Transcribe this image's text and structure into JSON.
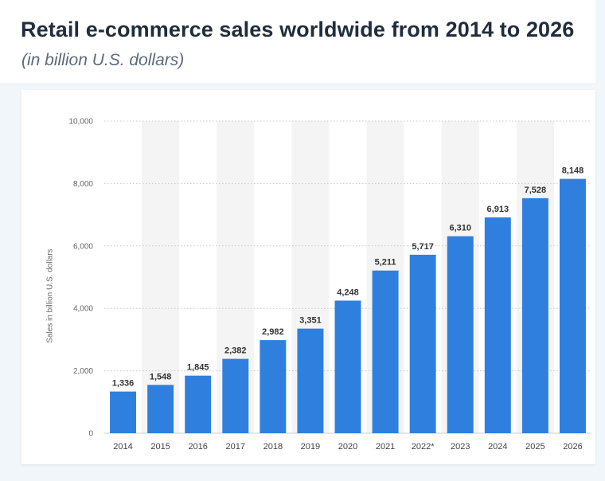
{
  "header": {
    "title": "Retail e-commerce sales worldwide from 2014 to 2026",
    "subtitle": "(in billion U.S. dollars)"
  },
  "chart_data": {
    "type": "bar",
    "title": "Retail e-commerce sales worldwide from 2014 to 2026",
    "subtitle": "(in billion U.S. dollars)",
    "xlabel": "",
    "ylabel": "Sales in billion U.S. dollars",
    "ylim": [
      0,
      10000
    ],
    "yticks": [
      0,
      2000,
      4000,
      6000,
      8000,
      10000
    ],
    "ytick_labels": [
      "0",
      "2,000",
      "4,000",
      "6,000",
      "8,000",
      "10,000"
    ],
    "grid": true,
    "categories": [
      "2014",
      "2015",
      "2016",
      "2017",
      "2018",
      "2019",
      "2020",
      "2021",
      "2022*",
      "2023",
      "2024",
      "2025",
      "2026"
    ],
    "values": [
      1336,
      1548,
      1845,
      2382,
      2982,
      3351,
      4248,
      5211,
      5717,
      6310,
      6913,
      7528,
      8148
    ],
    "value_labels": [
      "1,336",
      "1,548",
      "1,845",
      "2,382",
      "2,982",
      "3,351",
      "4,248",
      "5,211",
      "5,717",
      "6,310",
      "6,913",
      "7,528",
      "8,148"
    ],
    "colors": {
      "bar": "#2f7fde",
      "band": "#f4f4f4",
      "grid": "#c9c9c9"
    }
  }
}
